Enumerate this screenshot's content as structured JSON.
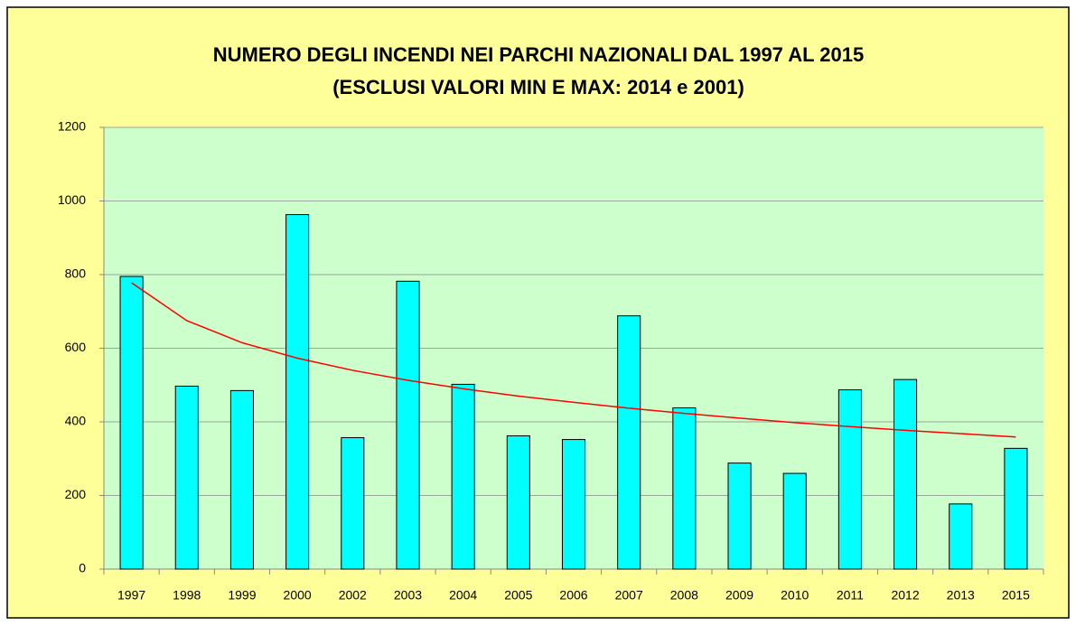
{
  "chart_data": {
    "type": "bar",
    "title": "NUMERO DEGLI INCENDI NEI PARCHI NAZIONALI DAL 1997 AL 2015",
    "subtitle": "(ESCLUSI VALORI MIN E MAX: 2014 e 2001)",
    "categories": [
      "1997",
      "1998",
      "1999",
      "2000",
      "2002",
      "2003",
      "2004",
      "2005",
      "2006",
      "2007",
      "2008",
      "2009",
      "2010",
      "2011",
      "2012",
      "2013",
      "2015"
    ],
    "series": [
      {
        "type": "bar",
        "color": "#00ffff",
        "values": [
          795,
          497,
          485,
          963,
          357,
          782,
          502,
          362,
          352,
          688,
          438,
          288,
          260,
          487,
          515,
          177,
          328
        ]
      },
      {
        "type": "line",
        "color": "#ff0000",
        "values": [
          778,
          675,
          615,
          573,
          540,
          513,
          490,
          470,
          453,
          437,
          423,
          410,
          398,
          387,
          377,
          368,
          359
        ]
      }
    ],
    "ylim": [
      0,
      1200
    ],
    "yticks": [
      0,
      200,
      400,
      600,
      800,
      1000,
      1200
    ],
    "grid": true
  }
}
